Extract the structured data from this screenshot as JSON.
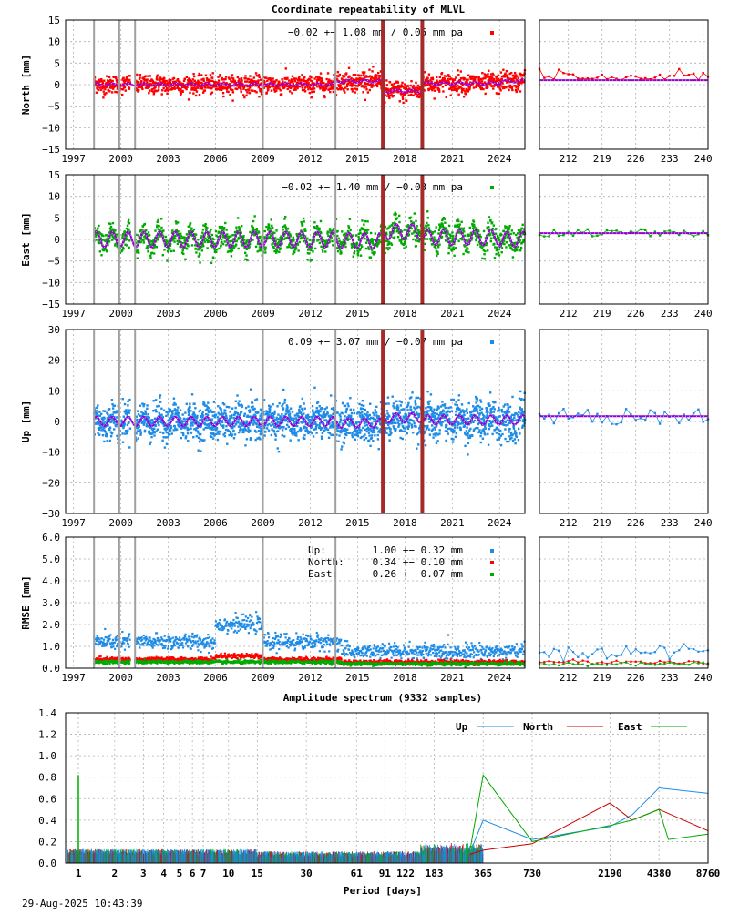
{
  "title": "Coordinate repeatability of MLVL",
  "footer_timestamp": "29-Aug-2025 10:43:39",
  "colors": {
    "north": "#ff0000",
    "east": "#00aa00",
    "up": "#1e8ce6",
    "model": "#9400d3",
    "event_red": "#a52a2a",
    "event_gray": "#a0a0a0"
  },
  "chart_data": [
    {
      "id": "north",
      "type": "scatter",
      "ylabel": "North [mm]",
      "ylim": [
        -15,
        15
      ],
      "yticks": [
        "15",
        "10",
        "5",
        "0",
        "−5",
        "−10",
        "−15"
      ],
      "xrange": [
        1996.5,
        2025.6
      ],
      "xticks": [
        "1997",
        "2000",
        "2003",
        "2006",
        "2009",
        "2012",
        "2015",
        "2018",
        "2021",
        "2024"
      ],
      "stats": "−0.02 +− 1.08 mm /  0.05 mm pa",
      "scatter_sd": 1.1,
      "seasonal_amp": 0.3,
      "offsets": [
        [
          1998.3,
          0
        ],
        [
          2013.5,
          0.8
        ],
        [
          2016.6,
          -1.5
        ],
        [
          2019.1,
          0.3
        ],
        [
          2024,
          0.8
        ]
      ],
      "recent_x": [
        "212",
        "219",
        "226",
        "233",
        "240"
      ],
      "recent_range": [
        206,
        241
      ]
    },
    {
      "id": "east",
      "type": "scatter",
      "ylabel": "East [mm]",
      "ylim": [
        -15,
        15
      ],
      "yticks": [
        "15",
        "10",
        "5",
        "0",
        "−5",
        "−10",
        "−15"
      ],
      "xrange": [
        1996.5,
        2025.6
      ],
      "xticks": [
        "1997",
        "2000",
        "2003",
        "2006",
        "2009",
        "2012",
        "2015",
        "2018",
        "2021",
        "2024"
      ],
      "stats": "−0.02 +− 1.40 mm / −0.03 mm pa",
      "scatter_sd": 1.4,
      "seasonal_amp": 1.8,
      "offsets": [
        [
          1998.3,
          0
        ],
        [
          2013.5,
          -0.3
        ],
        [
          2016.6,
          1.8
        ],
        [
          2019.1,
          0.5
        ],
        [
          2024,
          0
        ]
      ],
      "recent_x": [
        "212",
        "219",
        "226",
        "233",
        "240"
      ],
      "recent_range": [
        206,
        241
      ]
    },
    {
      "id": "up",
      "type": "scatter",
      "ylabel": "Up [mm]",
      "ylim": [
        -30,
        30
      ],
      "yticks": [
        "30",
        "20",
        "10",
        "0",
        "−10",
        "−20",
        "−30"
      ],
      "xrange": [
        1996.5,
        2025.6
      ],
      "xticks": [
        "1997",
        "2000",
        "2003",
        "2006",
        "2009",
        "2012",
        "2015",
        "2018",
        "2021",
        "2024"
      ],
      "stats": " 0.09 +− 3.07 mm / −0.07 mm pa",
      "scatter_sd": 3.0,
      "seasonal_amp": 1.5,
      "offsets": [
        [
          1998.3,
          0
        ],
        [
          2013.5,
          -0.5
        ],
        [
          2016.6,
          1.2
        ],
        [
          2019.1,
          0.5
        ],
        [
          2024,
          0.5
        ]
      ],
      "recent_x": [
        "212",
        "219",
        "226",
        "233",
        "240"
      ],
      "recent_range": [
        206,
        241
      ]
    },
    {
      "id": "rmse",
      "type": "scatter",
      "ylabel": "RMSE [mm]",
      "ylim": [
        0,
        6
      ],
      "yticks": [
        "6.0",
        "5.0",
        "4.0",
        "3.0",
        "2.0",
        "1.0",
        "0.0"
      ],
      "xrange": [
        1996.5,
        2025.6
      ],
      "xticks": [
        "1997",
        "2000",
        "2003",
        "2006",
        "2009",
        "2012",
        "2015",
        "2018",
        "2021",
        "2024"
      ],
      "legend": [
        {
          "name": "Up:",
          "value": "1.00 +− 0.32 mm",
          "color": "#1e8ce6"
        },
        {
          "name": "North:",
          "value": "0.34 +− 0.10 mm",
          "color": "#ff0000"
        },
        {
          "name": "East:",
          "value": "0.26 +− 0.07 mm",
          "color": "#00aa00"
        }
      ],
      "recent_x": [
        "212",
        "219",
        "226",
        "233",
        "240"
      ],
      "recent_range": [
        206,
        241
      ]
    }
  ],
  "event_lines": {
    "gray": [
      1998.3,
      1999.9,
      2000.9,
      2009.0,
      2013.6
    ],
    "red": [
      2016.6,
      2019.1
    ]
  },
  "spectrum": {
    "type": "line",
    "title": "Amplitude spectrum (9332 samples)",
    "xlabel": "Period [days]",
    "ylim": [
      0,
      1.4
    ],
    "yticks": [
      "1.4",
      "1.2",
      "1.0",
      "0.8",
      "0.6",
      "0.4",
      "0.2",
      "0.0"
    ],
    "xticks": [
      "1",
      "2",
      "3",
      "4",
      "5",
      "6",
      "7",
      "10",
      "15",
      "30",
      "61",
      "91",
      "122",
      "183",
      "365",
      "730",
      "2190",
      "4380",
      "8760"
    ],
    "series": [
      {
        "name": "Up",
        "color": "#1e8ce6",
        "low_points": [
          [
            365,
            0.4
          ],
          [
            730,
            0.22
          ],
          [
            2190,
            0.34
          ],
          [
            3000,
            0.45
          ],
          [
            4380,
            0.7
          ],
          [
            8760,
            0.65
          ]
        ]
      },
      {
        "name": "North",
        "color": "#cc0000",
        "low_points": [
          [
            365,
            0.12
          ],
          [
            730,
            0.18
          ],
          [
            2190,
            0.56
          ],
          [
            3000,
            0.4
          ],
          [
            4380,
            0.5
          ],
          [
            8760,
            0.3
          ]
        ]
      },
      {
        "name": "East",
        "color": "#00aa00",
        "low_points": [
          [
            365,
            0.82
          ],
          [
            730,
            0.2
          ],
          [
            2190,
            0.35
          ],
          [
            3000,
            0.4
          ],
          [
            4380,
            0.5
          ],
          [
            5000,
            0.22
          ],
          [
            8760,
            0.27
          ]
        ]
      }
    ]
  }
}
